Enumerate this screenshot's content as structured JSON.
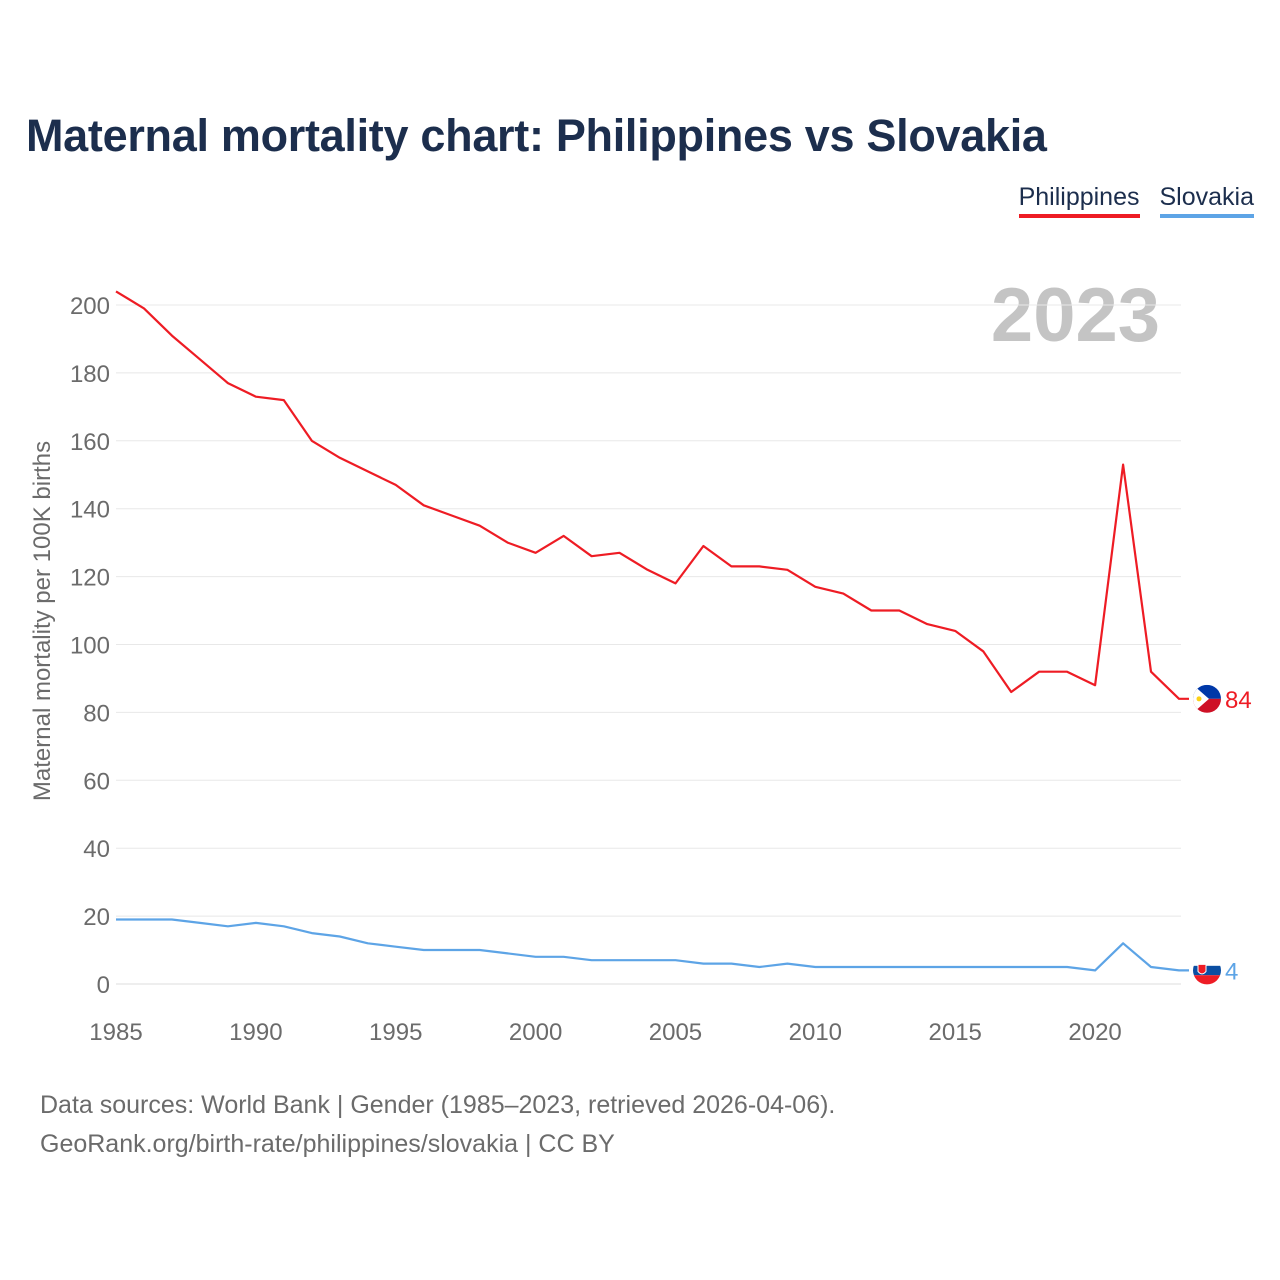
{
  "title": "Maternal mortality chart: Philippines vs Slovakia",
  "legend": [
    {
      "name": "Philippines",
      "color": "#ee1c24"
    },
    {
      "name": "Slovakia",
      "color": "#5da4e6"
    }
  ],
  "chart_data": {
    "type": "line",
    "title": "Maternal mortality chart: Philippines vs Slovakia",
    "ylabel": "Maternal mortality per 100K births",
    "xlabel": "",
    "ylim": [
      0,
      210
    ],
    "xlim": [
      1985,
      2023
    ],
    "yticks": [
      0,
      20,
      40,
      60,
      80,
      100,
      120,
      140,
      160,
      180,
      200
    ],
    "xticks": [
      1985,
      1990,
      1995,
      2000,
      2005,
      2010,
      2015,
      2020
    ],
    "year_label": "2023",
    "x": [
      1985,
      1986,
      1987,
      1988,
      1989,
      1990,
      1991,
      1992,
      1993,
      1994,
      1995,
      1996,
      1997,
      1998,
      1999,
      2000,
      2001,
      2002,
      2003,
      2004,
      2005,
      2006,
      2007,
      2008,
      2009,
      2010,
      2011,
      2012,
      2013,
      2014,
      2015,
      2016,
      2017,
      2018,
      2019,
      2020,
      2021,
      2022,
      2023
    ],
    "series": [
      {
        "name": "Philippines",
        "color": "#ee1c24",
        "end_label": "84",
        "values": [
          204,
          199,
          191,
          184,
          177,
          173,
          172,
          160,
          155,
          151,
          147,
          141,
          138,
          135,
          130,
          127,
          132,
          126,
          127,
          122,
          118,
          129,
          123,
          123,
          122,
          117,
          115,
          110,
          110,
          106,
          104,
          98,
          86,
          92,
          92,
          88,
          153,
          92,
          84
        ]
      },
      {
        "name": "Slovakia",
        "color": "#5da4e6",
        "end_label": "4",
        "values": [
          19,
          19,
          19,
          18,
          17,
          18,
          17,
          15,
          14,
          12,
          11,
          10,
          10,
          10,
          9,
          8,
          8,
          7,
          7,
          7,
          7,
          6,
          6,
          5,
          6,
          5,
          5,
          5,
          5,
          5,
          5,
          5,
          5,
          5,
          5,
          4,
          12,
          5,
          4
        ]
      }
    ]
  },
  "footer": {
    "line1": "Data sources: World Bank | Gender (1985–2023, retrieved 2026-04-06).",
    "line2": "GeoRank.org/birth-rate/philippines/slovakia | CC BY"
  }
}
